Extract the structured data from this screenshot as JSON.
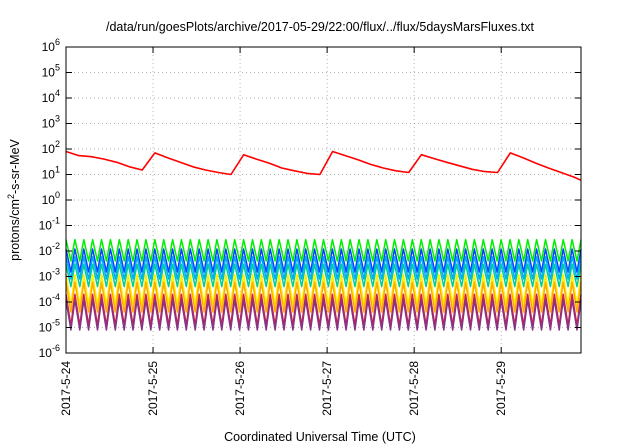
{
  "chart_data": {
    "type": "line",
    "title": "/data/run/goesPlots/archive/2017-05-29/22:00/flux/../flux/5daysMarsFluxes.txt",
    "xlabel": "Coordinated Universal Time (UTC)",
    "ylabel_parts": [
      "protons/cm",
      "2",
      "-s-sr-MeV"
    ],
    "y_scale": "log",
    "ylim": [
      1e-06,
      1000000.0
    ],
    "y_ticks": [
      {
        "base": "10",
        "exp": "-6",
        "value": 1e-06
      },
      {
        "base": "10",
        "exp": "-5",
        "value": 1e-05
      },
      {
        "base": "10",
        "exp": "-4",
        "value": 0.0001
      },
      {
        "base": "10",
        "exp": "-3",
        "value": 0.001
      },
      {
        "base": "10",
        "exp": "-2",
        "value": 0.01
      },
      {
        "base": "10",
        "exp": "-1",
        "value": 0.1
      },
      {
        "base": "10",
        "exp": "0",
        "value": 1
      },
      {
        "base": "10",
        "exp": "1",
        "value": 10
      },
      {
        "base": "10",
        "exp": "2",
        "value": 100
      },
      {
        "base": "10",
        "exp": "3",
        "value": 1000
      },
      {
        "base": "10",
        "exp": "4",
        "value": 10000
      },
      {
        "base": "10",
        "exp": "5",
        "value": 100000
      },
      {
        "base": "10",
        "exp": "6",
        "value": 1000000
      }
    ],
    "x_tick_labels": [
      "2017-5-24",
      "2017-5-25",
      "2017-5-26",
      "2017-5-27",
      "2017-5-28",
      "2017-5-29"
    ],
    "xlim": [
      "2017-05-24T00:00",
      "2017-05-29T22:00"
    ],
    "grid": true,
    "series": [
      {
        "color": "#ff0000",
        "x": [
          "2017-05-24T00:00",
          "2017-05-24T03:30",
          "2017-05-24T07:00",
          "2017-05-24T10:30",
          "2017-05-24T14:00",
          "2017-05-24T17:30",
          "2017-05-24T21:00",
          "2017-05-25T00:30",
          "2017-05-25T04:00",
          "2017-05-25T07:30",
          "2017-05-25T11:00",
          "2017-05-25T14:30",
          "2017-05-25T18:00",
          "2017-05-25T21:30",
          "2017-05-26T01:00",
          "2017-05-26T04:30",
          "2017-05-26T08:00",
          "2017-05-26T11:30",
          "2017-05-26T15:00",
          "2017-05-26T18:30",
          "2017-05-26T22:00",
          "2017-05-27T01:30",
          "2017-05-27T05:00",
          "2017-05-27T08:30",
          "2017-05-27T12:00",
          "2017-05-27T15:30",
          "2017-05-27T19:00",
          "2017-05-27T22:30",
          "2017-05-28T02:00",
          "2017-05-28T05:30",
          "2017-05-28T09:00",
          "2017-05-28T12:30",
          "2017-05-28T16:00",
          "2017-05-28T19:30",
          "2017-05-28T23:00",
          "2017-05-29T02:30",
          "2017-05-29T06:00",
          "2017-05-29T09:30",
          "2017-05-29T13:00",
          "2017-05-29T16:30",
          "2017-05-29T20:00",
          "2017-05-29T22:00"
        ],
        "values": [
          80,
          55,
          50,
          40,
          30,
          20,
          15,
          70,
          45,
          30,
          20,
          15,
          12,
          10,
          60,
          40,
          28,
          18,
          14,
          11,
          10,
          80,
          55,
          38,
          25,
          18,
          14,
          12,
          60,
          42,
          30,
          22,
          16,
          13,
          12,
          70,
          45,
          28,
          18,
          12,
          8,
          6
        ]
      }
    ],
    "band_series": [
      {
        "color": "#00ee00",
        "high": 0.028,
        "low": 0.004
      },
      {
        "color": "#0044ff",
        "high": 0.012,
        "low": 0.0015
      },
      {
        "color": "#00aaff",
        "high": 0.006,
        "low": 0.0008
      },
      {
        "color": "#00cc99",
        "high": 0.003,
        "low": 0.0004
      },
      {
        "color": "#ffee00",
        "high": 0.0012,
        "low": 8e-05
      },
      {
        "color": "#ffaa00",
        "high": 0.0006,
        "low": 4e-05
      },
      {
        "color": "#cc2244",
        "high": 0.0002,
        "low": 1.2e-05
      },
      {
        "color": "#883388",
        "high": 0.00012,
        "low": 8e-06
      }
    ],
    "band_cycles": 58
  }
}
